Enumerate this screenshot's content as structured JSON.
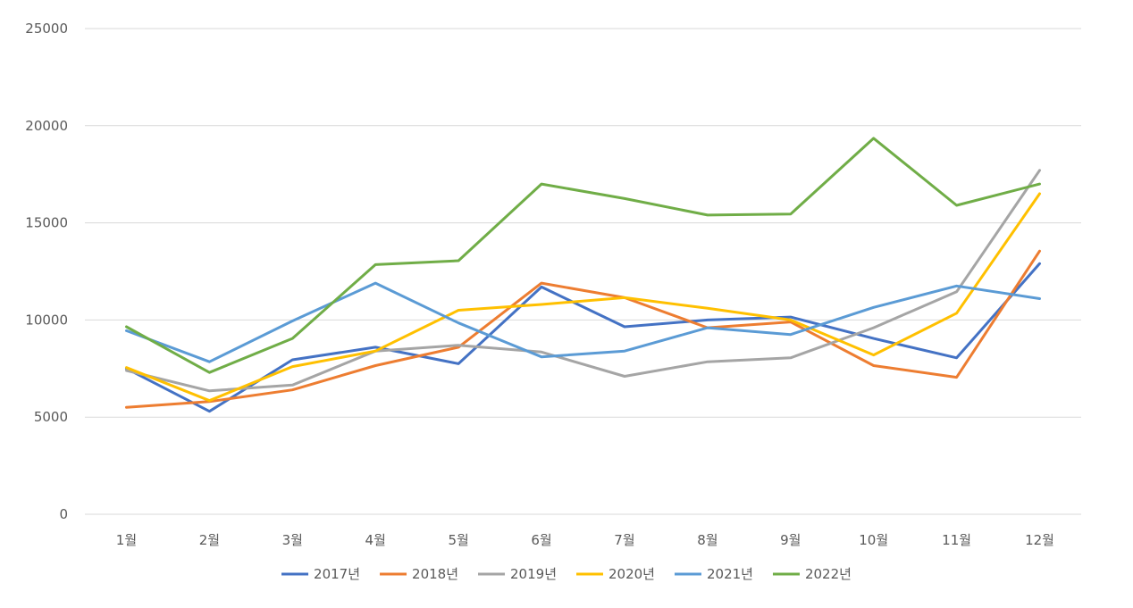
{
  "chart_data": {
    "type": "line",
    "title": "",
    "xlabel": "",
    "ylabel": "",
    "ylim": [
      0,
      25000
    ],
    "yticks": [
      0,
      5000,
      10000,
      15000,
      20000,
      25000
    ],
    "grid": true,
    "legend_position": "bottom",
    "categories": [
      "1월",
      "2월",
      "3월",
      "4월",
      "5월",
      "6월",
      "7월",
      "8월",
      "9월",
      "10월",
      "11월",
      "12월"
    ],
    "series": [
      {
        "name": "2017년",
        "color": "#4472c4",
        "values": [
          7500,
          5300,
          7950,
          8600,
          7750,
          11700,
          9650,
          10000,
          10150,
          9050,
          8050,
          12900
        ]
      },
      {
        "name": "2018년",
        "color": "#ed7d31",
        "values": [
          5500,
          5800,
          6400,
          7650,
          8600,
          11900,
          11150,
          9600,
          9900,
          7650,
          7050,
          13550
        ]
      },
      {
        "name": "2019년",
        "color": "#a5a5a5",
        "values": [
          7400,
          6350,
          6650,
          8400,
          8700,
          8350,
          7100,
          7850,
          8050,
          9600,
          11450,
          17700
        ]
      },
      {
        "name": "2020년",
        "color": "#ffc000",
        "values": [
          7550,
          5850,
          7600,
          8400,
          10500,
          10800,
          11150,
          10600,
          10000,
          8200,
          10350,
          16500
        ]
      },
      {
        "name": "2021년",
        "color": "#5b9bd5",
        "values": [
          9450,
          7850,
          9950,
          11900,
          9850,
          8100,
          8400,
          9600,
          9250,
          10650,
          11750,
          11100
        ]
      },
      {
        "name": "2022년",
        "color": "#70ad47",
        "values": [
          9650,
          7300,
          9050,
          12850,
          13050,
          17000,
          16250,
          15400,
          15450,
          19350,
          15900,
          17000
        ]
      }
    ]
  }
}
